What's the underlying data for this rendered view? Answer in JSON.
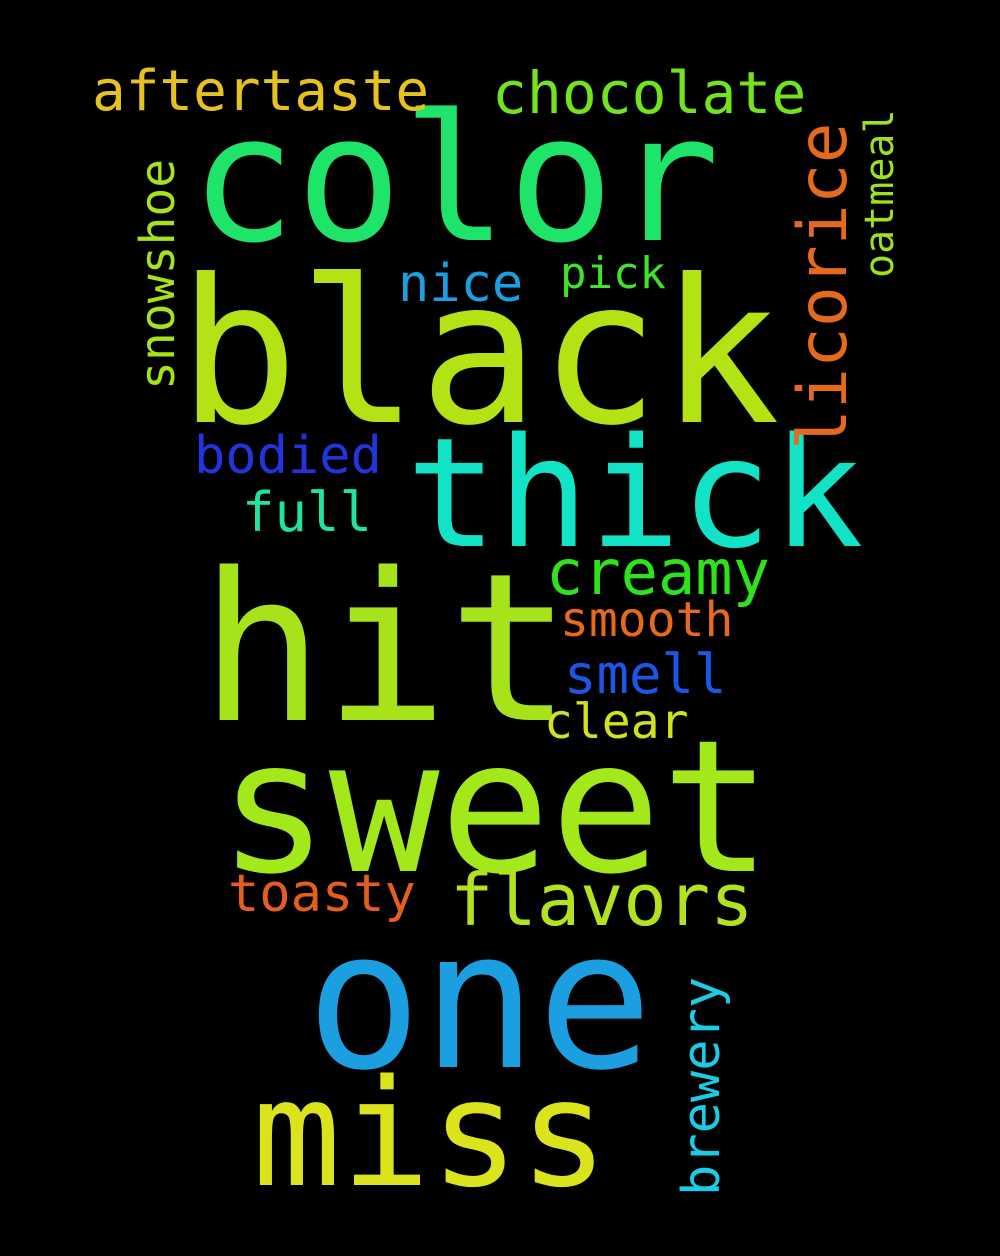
{
  "background": "#000000",
  "words": [
    {
      "text": "color",
      "color": "#1ee56a",
      "orientation": "horizontal"
    },
    {
      "text": "black",
      "color": "#b3e315",
      "orientation": "horizontal"
    },
    {
      "text": "thick",
      "color": "#12e3c7",
      "orientation": "horizontal"
    },
    {
      "text": "hit",
      "color": "#a6e31a",
      "orientation": "horizontal"
    },
    {
      "text": "sweet",
      "color": "#a2e81a",
      "orientation": "horizontal"
    },
    {
      "text": "one",
      "color": "#1b9fe0",
      "orientation": "horizontal"
    },
    {
      "text": "miss",
      "color": "#dbe31c",
      "orientation": "horizontal"
    },
    {
      "text": "aftertaste",
      "color": "#e6c21e",
      "orientation": "horizontal"
    },
    {
      "text": "chocolate",
      "color": "#73e31e",
      "orientation": "horizontal"
    },
    {
      "text": "licorice",
      "color": "#e66a1b",
      "orientation": "vertical"
    },
    {
      "text": "oatmeal",
      "color": "#9be31e",
      "orientation": "vertical"
    },
    {
      "text": "snowshoe",
      "color": "#a6e31a",
      "orientation": "vertical"
    },
    {
      "text": "nice",
      "color": "#1b9fe0",
      "orientation": "horizontal"
    },
    {
      "text": "pick",
      "color": "#3ee32a",
      "orientation": "horizontal"
    },
    {
      "text": "bodied",
      "color": "#2233e0",
      "orientation": "horizontal"
    },
    {
      "text": "full",
      "color": "#1ee3a3",
      "orientation": "horizontal"
    },
    {
      "text": "creamy",
      "color": "#2ee31a",
      "orientation": "horizontal"
    },
    {
      "text": "smooth",
      "color": "#e66a1b",
      "orientation": "horizontal"
    },
    {
      "text": "smell",
      "color": "#1d56e6",
      "orientation": "horizontal"
    },
    {
      "text": "clear",
      "color": "#d2e31c",
      "orientation": "horizontal"
    },
    {
      "text": "toasty",
      "color": "#e65e1b",
      "orientation": "horizontal"
    },
    {
      "text": "flavors",
      "color": "#b3e31e",
      "orientation": "horizontal"
    },
    {
      "text": "brewery",
      "color": "#1bcce6",
      "orientation": "vertical"
    }
  ]
}
